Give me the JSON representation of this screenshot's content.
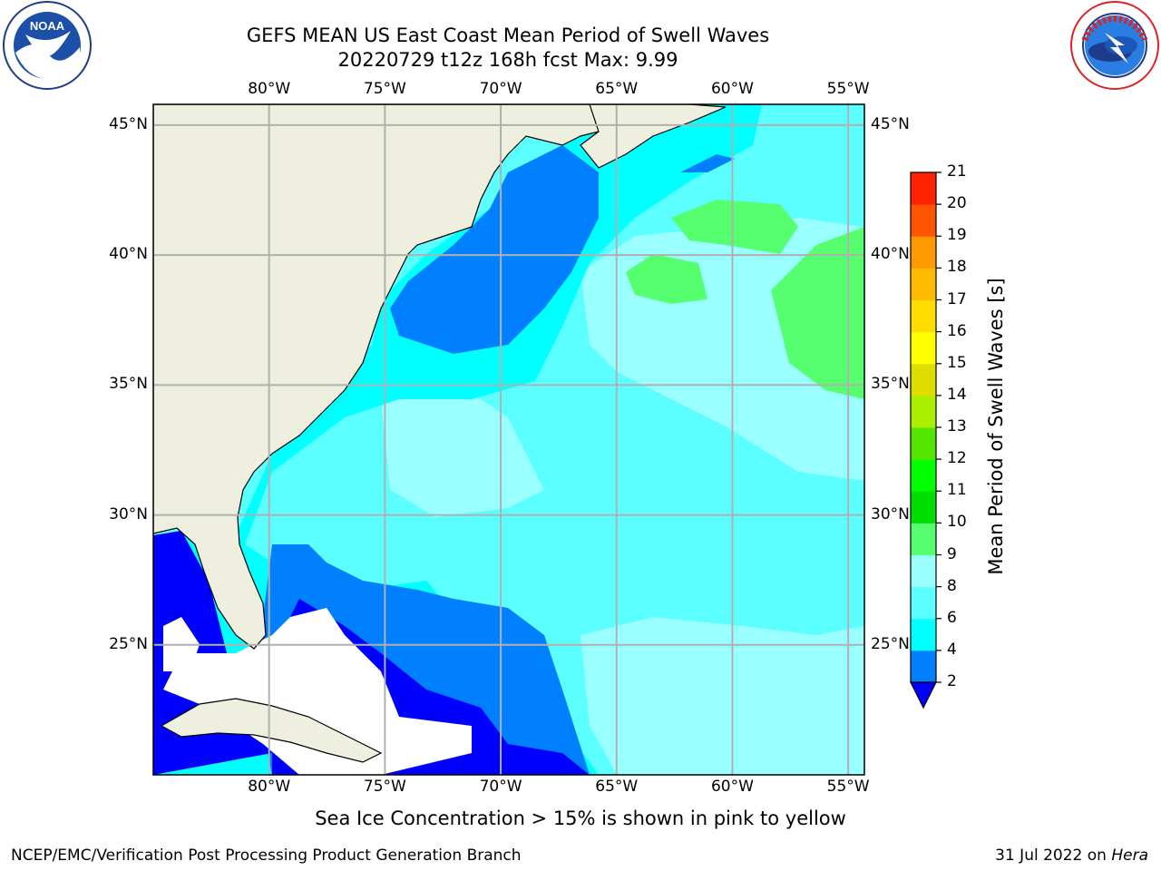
{
  "title": {
    "line1": "GEFS MEAN US East Coast Mean Period of Swell Waves",
    "line2": "20220729 t12z 168h fcst   Max: 9.99"
  },
  "logos": {
    "left": {
      "icon": "noaa-logo-icon",
      "text": "NOAA"
    },
    "right": {
      "icon": "national-weather-service-logo-icon"
    }
  },
  "map": {
    "projection": "lat-lon",
    "lon_range": [
      -85,
      -54.3
    ],
    "lat_range": [
      20,
      45.8
    ],
    "lon_ticks": [
      {
        "value": -80,
        "label": "80°W"
      },
      {
        "value": -75,
        "label": "75°W"
      },
      {
        "value": -70,
        "label": "70°W"
      },
      {
        "value": -65,
        "label": "65°W"
      },
      {
        "value": -60,
        "label": "60°W"
      },
      {
        "value": -55,
        "label": "55°W"
      }
    ],
    "lat_ticks": [
      {
        "value": 45,
        "label": "45°N"
      },
      {
        "value": 40,
        "label": "40°N"
      },
      {
        "value": 35,
        "label": "35°N"
      },
      {
        "value": 30,
        "label": "30°N"
      },
      {
        "value": 25,
        "label": "25°N"
      }
    ],
    "grid": true,
    "colors": {
      "land": "#efefdf",
      "coast": "#000000",
      "grid": "#b0b0b0",
      "nodata": "#ffffff"
    }
  },
  "colorbar": {
    "label": "Mean Period of Swell Waves [s]",
    "extend": "min",
    "ticks": [
      "2",
      "4",
      "6",
      "8",
      "9",
      "10",
      "11",
      "12",
      "13",
      "14",
      "15",
      "16",
      "17",
      "18",
      "19",
      "20",
      "21"
    ],
    "colors": [
      "#0000ff",
      "#0080ff",
      "#00ffff",
      "#5cffff",
      "#9affff",
      "#55ff6e",
      "#00dd00",
      "#00ff00",
      "#55e600",
      "#aaee00",
      "#dddd00",
      "#ffff00",
      "#ffdd00",
      "#ffbb00",
      "#ff9900",
      "#ff5500",
      "#ff2200",
      "#ff0000"
    ]
  },
  "subtitle": "Sea Ice Concentration > 15% is shown in pink to yellow",
  "footer": {
    "left": "NCEP/EMC/Verification Post Processing Product Generation Branch",
    "right_date": "31 Jul 2022 on ",
    "right_host": "Hera"
  }
}
